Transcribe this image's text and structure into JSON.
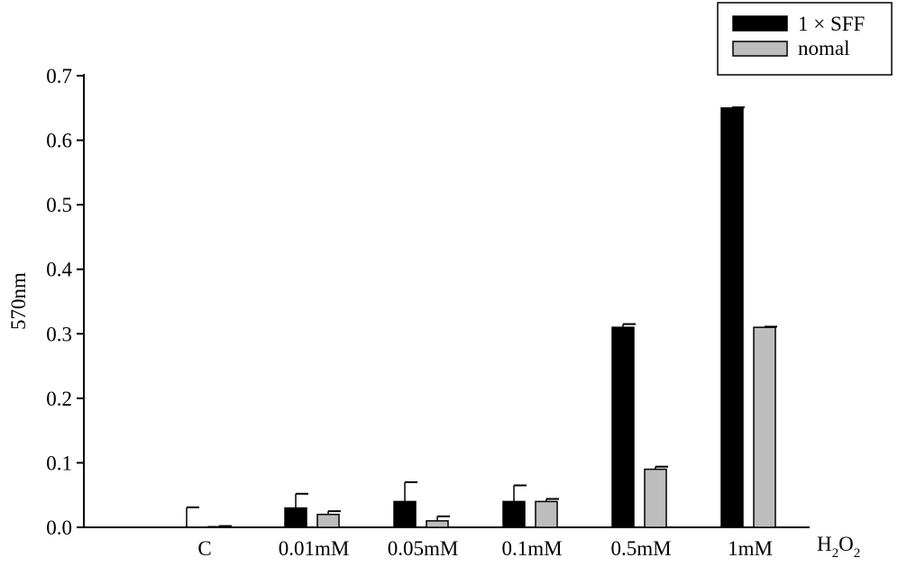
{
  "chart_data": {
    "type": "bar",
    "title": "",
    "xlabel": "",
    "ylabel": "570nm",
    "x_suffix": {
      "main": "H",
      "sub1": "2",
      "mid": "O",
      "sub2": "2"
    },
    "ylim": [
      0,
      0.7
    ],
    "yticks": [
      "0.0",
      "0.1",
      "0.2",
      "0.3",
      "0.4",
      "0.5",
      "0.6",
      "0.7"
    ],
    "categories": [
      "C",
      "0.01mM",
      "0.05mM",
      "0.1mM",
      "0.5mM",
      "1mM"
    ],
    "series": [
      {
        "name": "1 × SFF",
        "color": "#000000",
        "values": [
          0.0,
          0.03,
          0.04,
          0.04,
          0.31,
          0.65
        ],
        "errors": [
          0.031,
          0.022,
          0.03,
          0.025,
          0.005,
          0.001
        ]
      },
      {
        "name": "nomal",
        "color": "#bdbdbd",
        "values": [
          0.001,
          0.02,
          0.01,
          0.04,
          0.09,
          0.31
        ],
        "errors": [
          0.001,
          0.005,
          0.007,
          0.004,
          0.004,
          0.001
        ]
      }
    ],
    "legend_position": "top-right",
    "grid": false
  }
}
